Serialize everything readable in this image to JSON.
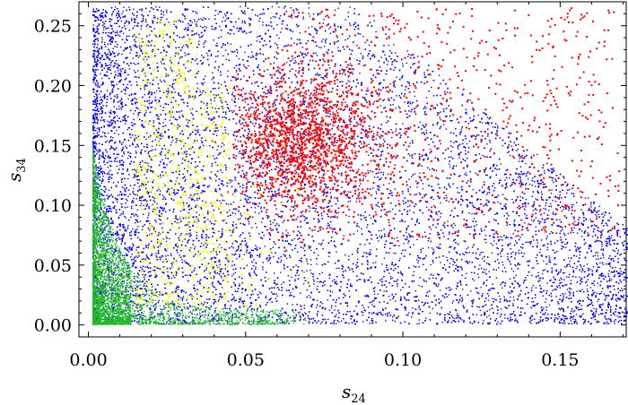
{
  "chart_data": {
    "type": "scatter",
    "xlabel": "s",
    "xlabel_sub": "24",
    "ylabel": "s",
    "ylabel_sub": "34",
    "xlim": [
      -0.003,
      0.171
    ],
    "ylim": [
      -0.01,
      0.27
    ],
    "x_ticks": [
      0.0,
      0.05,
      0.1,
      0.15
    ],
    "x_tick_labels": [
      "0.00",
      "0.05",
      "0.10",
      "0.15"
    ],
    "y_ticks": [
      0.0,
      0.05,
      0.1,
      0.15,
      0.2,
      0.25
    ],
    "y_tick_labels": [
      "0.00",
      "0.05",
      "0.10",
      "0.15",
      "0.20",
      "0.25"
    ],
    "grid": false,
    "legend": "none",
    "series": [
      {
        "color": "#0000ff",
        "description_points": [
          [
            0.002,
            0.001
          ],
          [
            0.002,
            0.265
          ],
          [
            0.04,
            0.265
          ],
          [
            0.09,
            0.26
          ],
          [
            0.12,
            0.22
          ],
          [
            0.15,
            0.15
          ],
          [
            0.17,
            0.1
          ],
          [
            0.17,
            0.02
          ],
          [
            0.12,
            0.005
          ],
          [
            0.06,
            0.004
          ]
        ]
      },
      {
        "color": "#22bb22",
        "description_points": [
          [
            0.002,
            0.0
          ],
          [
            0.003,
            0.15
          ],
          [
            0.006,
            0.1
          ],
          [
            0.01,
            0.05
          ],
          [
            0.02,
            0.015
          ],
          [
            0.04,
            0.006
          ],
          [
            0.07,
            0.003
          ]
        ]
      },
      {
        "color": "#ff0000",
        "description_points": [
          [
            0.048,
            0.14
          ],
          [
            0.055,
            0.2
          ],
          [
            0.065,
            0.15
          ],
          [
            0.08,
            0.17
          ],
          [
            0.095,
            0.24
          ],
          [
            0.11,
            0.09
          ],
          [
            0.13,
            0.12
          ],
          [
            0.16,
            0.21
          ]
        ]
      },
      {
        "color": "#ffff00",
        "description_points": [
          [
            0.015,
            0.12
          ],
          [
            0.02,
            0.06
          ],
          [
            0.025,
            0.18
          ],
          [
            0.03,
            0.22
          ],
          [
            0.035,
            0.24
          ],
          [
            0.04,
            0.1
          ],
          [
            0.045,
            0.08
          ],
          [
            0.05,
            0.04
          ],
          [
            0.06,
            0.12
          ]
        ]
      }
    ]
  }
}
